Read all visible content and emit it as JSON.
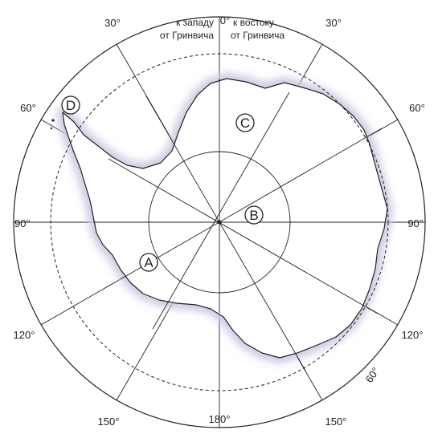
{
  "header": {
    "west_line1": "к западу",
    "west_line2": "от Гринвича",
    "east_line1": "к востоку",
    "east_line2": "от Гринвича"
  },
  "degree_labels": {
    "top_zero": "0°",
    "top_left_30": "30°",
    "top_right_30": "30°",
    "left_60": "60°",
    "right_60": "60°",
    "left_90": "90°",
    "right_90": "90°",
    "left_120": "120°",
    "right_120": "120°",
    "bottom_left_150": "150°",
    "bottom_right_150": "150°",
    "bottom_180": "180°",
    "parallel_60": "60°"
  },
  "points": {
    "A": "A",
    "B": "B",
    "C": "C",
    "D": "D"
  },
  "colors": {
    "ink": "#222222",
    "shelf_glow": "#c9cbe4"
  }
}
